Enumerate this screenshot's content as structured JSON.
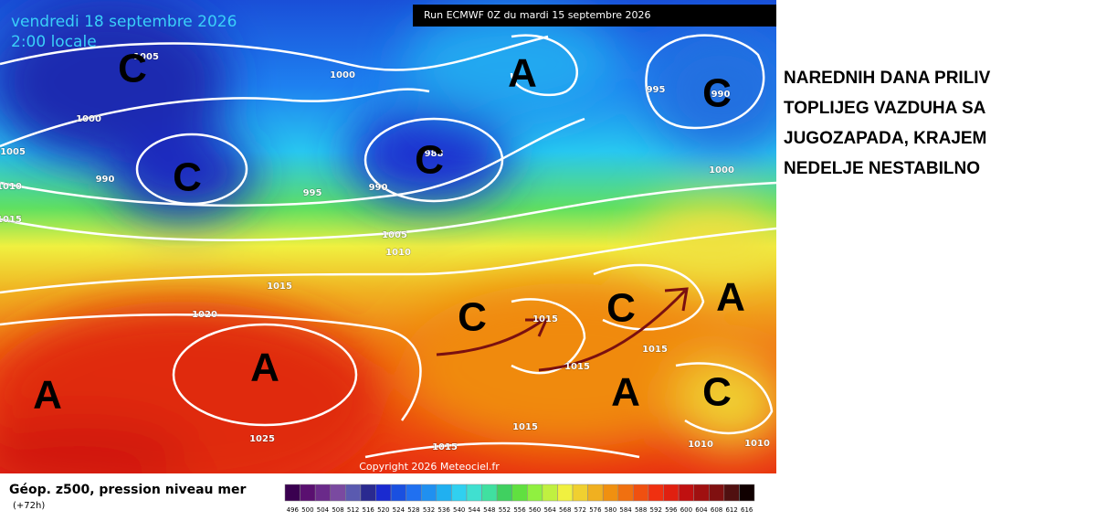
{
  "map": {
    "header": {
      "date": "vendredi 18 septembre 2026",
      "time": "2:00 locale",
      "run": "Run ECMWF 0Z du mardi 15 septembre 2026"
    },
    "pressure_labels": [
      "1005",
      "1000",
      "1000",
      "1005",
      "990",
      "995",
      "990",
      "988",
      "1010",
      "1015",
      "1005",
      "1010",
      "1015",
      "1020",
      "1015",
      "1015",
      "1015",
      "1015",
      "1015",
      "1025",
      "1010",
      "1010",
      "995",
      "990",
      "1000"
    ],
    "systems": [
      "C",
      "C",
      "C",
      "A",
      "C",
      "C",
      "C",
      "A",
      "A",
      "A",
      "A",
      "C"
    ],
    "copyright": "Copyright 2026 Meteociel.fr",
    "legend": {
      "title": "Géop. z500, pression niveau mer",
      "lead": "(+72h)",
      "values": [
        496,
        500,
        504,
        508,
        512,
        516,
        520,
        524,
        528,
        532,
        536,
        540,
        544,
        548,
        552,
        556,
        560,
        564,
        568,
        572,
        576,
        580,
        584,
        588,
        592,
        596,
        600,
        604,
        608,
        612,
        616
      ],
      "colors": [
        "#3a0050",
        "#5a1070",
        "#6a2a8a",
        "#7a4aa0",
        "#5a5ab0",
        "#2a2a90",
        "#1a2ad0",
        "#1a50e0",
        "#2070f0",
        "#2090f0",
        "#20b0f0",
        "#30d0f0",
        "#40e0d0",
        "#40e0a0",
        "#40d060",
        "#60e040",
        "#90f040",
        "#c0f040",
        "#f0f040",
        "#f0d030",
        "#f0b020",
        "#f09010",
        "#f07010",
        "#f05010",
        "#f03010",
        "#e02010",
        "#c01010",
        "#a01010",
        "#801010",
        "#501010",
        "#100000"
      ]
    },
    "annotation": {
      "lines": [
        "NAREDNIH DANA PRILIV",
        "TOPLIJEG VAZDUHA SA",
        "JUGOZAPADA, KRAJEM",
        "NEDELJE NESTABILNO"
      ]
    }
  }
}
